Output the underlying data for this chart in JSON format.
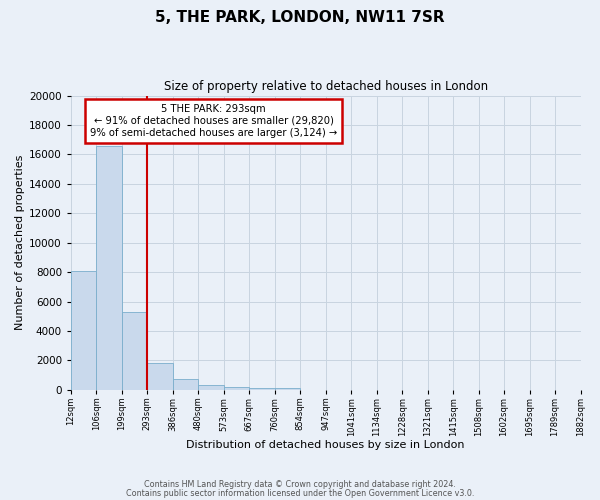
{
  "title": "5, THE PARK, LONDON, NW11 7SR",
  "subtitle": "Size of property relative to detached houses in London",
  "xlabel": "Distribution of detached houses by size in London",
  "ylabel": "Number of detached properties",
  "bar_values": [
    8100,
    16600,
    5300,
    1850,
    750,
    300,
    200,
    150,
    100,
    0,
    0,
    0,
    0,
    0,
    0,
    0,
    0,
    0,
    0,
    0
  ],
  "bar_labels": [
    "12sqm",
    "106sqm",
    "199sqm",
    "293sqm",
    "386sqm",
    "480sqm",
    "573sqm",
    "667sqm",
    "760sqm",
    "854sqm",
    "947sqm",
    "1041sqm",
    "1134sqm",
    "1228sqm",
    "1321sqm",
    "1415sqm",
    "1508sqm",
    "1602sqm",
    "1695sqm",
    "1789sqm",
    "1882sqm"
  ],
  "bar_color": "#c9d9ec",
  "bar_edgecolor": "#7aaecc",
  "property_label": "5 THE PARK: 293sqm",
  "annotation_line1": "← 91% of detached houses are smaller (29,820)",
  "annotation_line2": "9% of semi-detached houses are larger (3,124) →",
  "vline_color": "#cc0000",
  "annotation_box_edgecolor": "#cc0000",
  "ylim": [
    0,
    20000
  ],
  "yticks": [
    0,
    2000,
    4000,
    6000,
    8000,
    10000,
    12000,
    14000,
    16000,
    18000,
    20000
  ],
  "footer_line1": "Contains HM Land Registry data © Crown copyright and database right 2024.",
  "footer_line2": "Contains public sector information licensed under the Open Government Licence v3.0.",
  "background_color": "#eaf0f8",
  "plot_bg_color": "#eaf0f8",
  "grid_color": "#c8d4e0"
}
